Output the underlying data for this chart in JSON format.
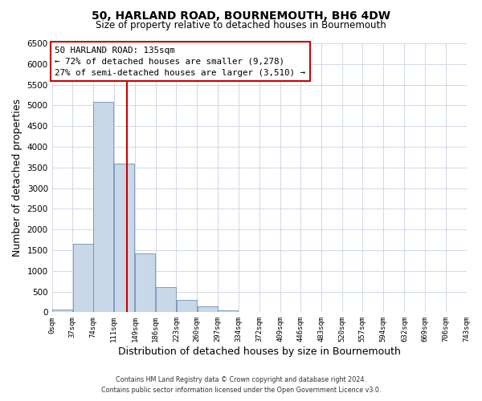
{
  "title": "50, HARLAND ROAD, BOURNEMOUTH, BH6 4DW",
  "subtitle": "Size of property relative to detached houses in Bournemouth",
  "xlabel": "Distribution of detached houses by size in Bournemouth",
  "ylabel": "Number of detached properties",
  "bin_labels": [
    "0sqm",
    "37sqm",
    "74sqm",
    "111sqm",
    "149sqm",
    "186sqm",
    "223sqm",
    "260sqm",
    "297sqm",
    "334sqm",
    "372sqm",
    "409sqm",
    "446sqm",
    "483sqm",
    "520sqm",
    "557sqm",
    "594sqm",
    "632sqm",
    "669sqm",
    "706sqm",
    "743sqm"
  ],
  "bin_edges": [
    0,
    37,
    74,
    111,
    149,
    186,
    223,
    260,
    297,
    334,
    372,
    409,
    446,
    483,
    520,
    557,
    594,
    632,
    669,
    706,
    743
  ],
  "bar_heights": [
    60,
    1650,
    5080,
    3590,
    1420,
    610,
    290,
    140,
    50,
    10,
    5,
    2,
    0,
    0,
    0,
    0,
    0,
    0,
    0,
    0
  ],
  "bar_color": "#c8d8e8",
  "bar_edge_color": "#7090b8",
  "property_line_x": 135,
  "property_line_color": "#cc0000",
  "ylim": [
    0,
    6500
  ],
  "yticks": [
    0,
    500,
    1000,
    1500,
    2000,
    2500,
    3000,
    3500,
    4000,
    4500,
    5000,
    5500,
    6000,
    6500
  ],
  "annotation_title": "50 HARLAND ROAD: 135sqm",
  "annotation_line1": "← 72% of detached houses are smaller (9,278)",
  "annotation_line2": "27% of semi-detached houses are larger (3,510) →",
  "annotation_box_color": "#cc0000",
  "footer_line1": "Contains HM Land Registry data © Crown copyright and database right 2024.",
  "footer_line2": "Contains public sector information licensed under the Open Government Licence v3.0.",
  "background_color": "#ffffff",
  "grid_color": "#d0d8e8"
}
